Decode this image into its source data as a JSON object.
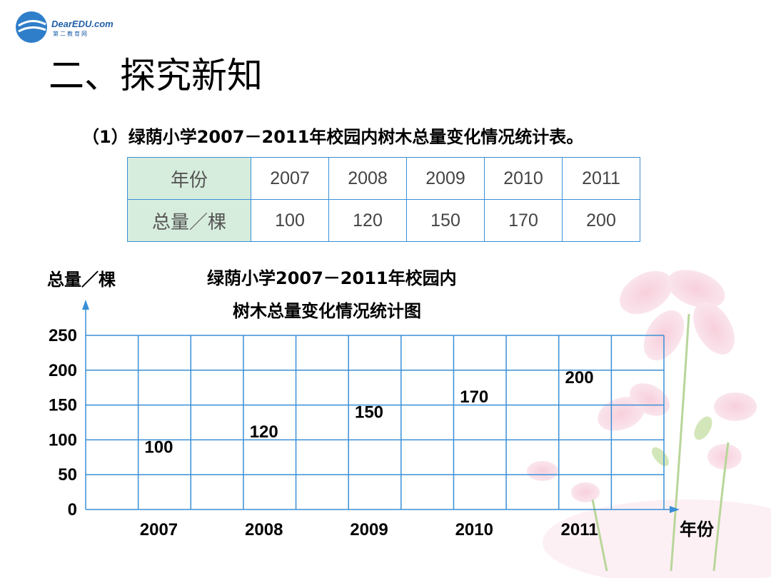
{
  "logo": {
    "text": "DearEDU.com",
    "sub": "第二教育网"
  },
  "page_title": "二、探究新知",
  "caption": "（1）绿荫小学2007－2011年校园内树木总量变化情况统计表。",
  "table": {
    "row_header_year": "年份",
    "row_header_total": "总量／棵",
    "years": [
      "2007",
      "2008",
      "2009",
      "2010",
      "2011"
    ],
    "totals": [
      "100",
      "120",
      "150",
      "170",
      "200"
    ]
  },
  "chart_data": {
    "type": "bar",
    "title_line1": "绿荫小学2007－2011年校园内",
    "title_line2": "树木总量变化情况统计图",
    "xlabel": "年份",
    "ylabel": "总量／棵",
    "categories": [
      "2007",
      "2008",
      "2009",
      "2010",
      "2011"
    ],
    "values": [
      100,
      120,
      150,
      170,
      200
    ],
    "yticks": [
      "0",
      "50",
      "100",
      "150",
      "200",
      "250"
    ],
    "ylim": [
      0,
      250
    ],
    "grid": true,
    "bars_drawn": false
  },
  "colors": {
    "grid": "#3a8fd6",
    "table_header": "#d6ecdc"
  }
}
